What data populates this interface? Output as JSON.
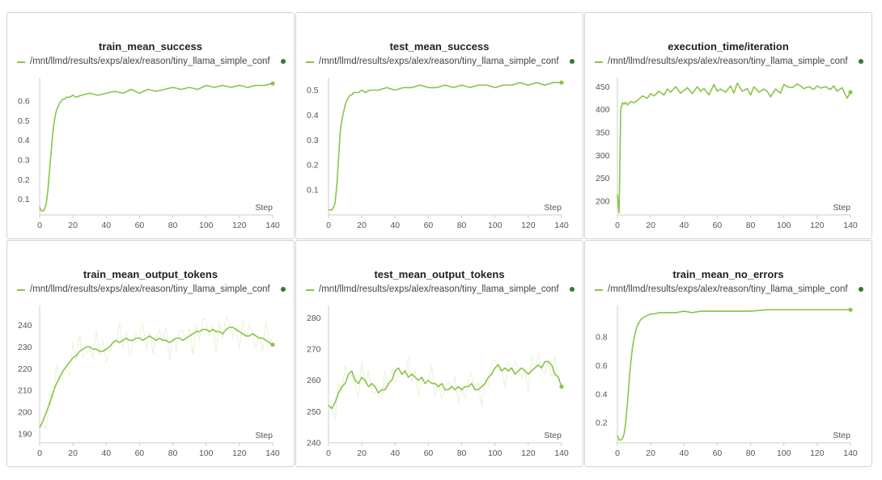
{
  "colors": {
    "series": "#8bc34a",
    "series_light": "#e8f3d6",
    "dot": "#2e7d32",
    "axis": "#cccccc"
  },
  "chart_data": [
    {
      "type": "line",
      "title": "train_mean_success",
      "legend": "/mnt/llmd/results/exps/alex/reason/tiny_llama_simple_conf",
      "xlabel": "Step",
      "xlim": [
        0,
        140
      ],
      "ylim": [
        0.02,
        0.72
      ],
      "xticks": [
        0,
        20,
        40,
        60,
        80,
        100,
        120,
        140
      ],
      "yticks": [
        0.1,
        0.2,
        0.3,
        0.4,
        0.5,
        0.6
      ],
      "ytick_labels": [
        "0.1",
        "0.2",
        "0.3",
        "0.4",
        "0.5",
        "0.6"
      ],
      "noisy": false,
      "x": [
        0,
        1,
        2,
        3,
        4,
        5,
        6,
        7,
        8,
        9,
        10,
        11,
        12,
        13,
        14,
        15,
        16,
        18,
        20,
        22,
        25,
        30,
        35,
        40,
        45,
        50,
        55,
        60,
        65,
        70,
        75,
        80,
        85,
        90,
        95,
        100,
        105,
        110,
        115,
        120,
        125,
        130,
        135,
        140
      ],
      "y": [
        0.06,
        0.04,
        0.04,
        0.05,
        0.08,
        0.15,
        0.25,
        0.35,
        0.45,
        0.51,
        0.55,
        0.57,
        0.59,
        0.6,
        0.61,
        0.61,
        0.62,
        0.62,
        0.63,
        0.62,
        0.63,
        0.64,
        0.63,
        0.64,
        0.65,
        0.64,
        0.66,
        0.64,
        0.66,
        0.65,
        0.66,
        0.67,
        0.66,
        0.67,
        0.66,
        0.68,
        0.67,
        0.68,
        0.67,
        0.68,
        0.67,
        0.68,
        0.68,
        0.69
      ]
    },
    {
      "type": "line",
      "title": "test_mean_success",
      "legend": "/mnt/llmd/results/exps/alex/reason/tiny_llama_simple_conf",
      "xlabel": "Step",
      "xlim": [
        0,
        140
      ],
      "ylim": [
        0.0,
        0.55
      ],
      "xticks": [
        0,
        20,
        40,
        60,
        80,
        100,
        120,
        140
      ],
      "yticks": [
        0.1,
        0.2,
        0.3,
        0.4,
        0.5
      ],
      "ytick_labels": [
        "0.1",
        "0.2",
        "0.3",
        "0.4",
        "0.5"
      ],
      "noisy": false,
      "x": [
        0,
        1,
        2,
        3,
        4,
        5,
        6,
        7,
        8,
        9,
        10,
        11,
        12,
        13,
        14,
        15,
        16,
        18,
        20,
        22,
        25,
        30,
        35,
        40,
        45,
        50,
        55,
        60,
        65,
        70,
        75,
        80,
        85,
        90,
        95,
        100,
        105,
        110,
        115,
        120,
        125,
        130,
        135,
        140
      ],
      "y": [
        0.02,
        0.02,
        0.02,
        0.03,
        0.05,
        0.12,
        0.22,
        0.33,
        0.38,
        0.41,
        0.44,
        0.46,
        0.47,
        0.48,
        0.48,
        0.49,
        0.49,
        0.49,
        0.5,
        0.49,
        0.5,
        0.5,
        0.51,
        0.5,
        0.51,
        0.51,
        0.52,
        0.51,
        0.51,
        0.52,
        0.51,
        0.52,
        0.51,
        0.52,
        0.52,
        0.51,
        0.52,
        0.52,
        0.53,
        0.52,
        0.53,
        0.52,
        0.53,
        0.53
      ]
    },
    {
      "type": "line",
      "title": "execution_time/iteration",
      "legend": "/mnt/llmd/results/exps/alex/reason/tiny_llama_simple_conf",
      "xlabel": "Step",
      "xlim": [
        0,
        140
      ],
      "ylim": [
        170,
        470
      ],
      "xticks": [
        0,
        20,
        40,
        60,
        80,
        100,
        120,
        140
      ],
      "yticks": [
        200,
        250,
        300,
        350,
        400,
        450
      ],
      "ytick_labels": [
        "200",
        "250",
        "300",
        "350",
        "400",
        "450"
      ],
      "noisy": false,
      "x": [
        0,
        1,
        2,
        3,
        4,
        5,
        6,
        8,
        10,
        12,
        15,
        18,
        20,
        22,
        25,
        28,
        30,
        32,
        35,
        38,
        40,
        42,
        45,
        48,
        50,
        52,
        55,
        58,
        60,
        62,
        65,
        68,
        70,
        72,
        75,
        78,
        80,
        82,
        85,
        88,
        90,
        92,
        95,
        98,
        100,
        102,
        105,
        108,
        110,
        112,
        115,
        118,
        120,
        122,
        125,
        128,
        130,
        132,
        135,
        138,
        140
      ],
      "y": [
        215,
        175,
        400,
        415,
        412,
        416,
        410,
        418,
        415,
        420,
        430,
        425,
        435,
        430,
        440,
        432,
        445,
        438,
        450,
        436,
        442,
        448,
        435,
        450,
        440,
        446,
        432,
        455,
        440,
        445,
        438,
        452,
        436,
        458,
        440,
        446,
        432,
        450,
        438,
        445,
        440,
        428,
        445,
        436,
        455,
        450,
        448,
        456,
        452,
        446,
        450,
        444,
        452,
        447,
        450,
        444,
        452,
        440,
        448,
        425,
        438
      ]
    },
    {
      "type": "line",
      "title": "train_mean_output_tokens",
      "legend": "/mnt/llmd/results/exps/alex/reason/tiny_llama_simple_conf",
      "xlabel": "Step",
      "xlim": [
        0,
        140
      ],
      "ylim": [
        186,
        249
      ],
      "xticks": [
        0,
        20,
        40,
        60,
        80,
        100,
        120,
        140
      ],
      "yticks": [
        190,
        200,
        210,
        220,
        230,
        240
      ],
      "ytick_labels": [
        "190",
        "200",
        "210",
        "220",
        "230",
        "240"
      ],
      "noisy": true,
      "x": [
        0,
        2,
        4,
        6,
        8,
        10,
        12,
        14,
        16,
        18,
        20,
        22,
        24,
        26,
        28,
        30,
        32,
        34,
        36,
        38,
        40,
        42,
        44,
        46,
        48,
        50,
        52,
        54,
        56,
        58,
        60,
        62,
        64,
        66,
        68,
        70,
        72,
        74,
        76,
        78,
        80,
        82,
        84,
        86,
        88,
        90,
        92,
        94,
        96,
        98,
        100,
        102,
        104,
        106,
        108,
        110,
        112,
        114,
        116,
        118,
        120,
        122,
        124,
        126,
        128,
        130,
        132,
        134,
        136,
        138,
        140
      ],
      "y": [
        193,
        196,
        200,
        204,
        209,
        213,
        216,
        219,
        221,
        223,
        225,
        226,
        228,
        229,
        230,
        230,
        229,
        229,
        228,
        228,
        229,
        230,
        232,
        233,
        232,
        233,
        234,
        233,
        233,
        234,
        234,
        233,
        234,
        235,
        234,
        233,
        234,
        233,
        233,
        232,
        233,
        234,
        234,
        233,
        234,
        235,
        236,
        237,
        237,
        238,
        238,
        237,
        238,
        237,
        237,
        236,
        238,
        239,
        239,
        238,
        237,
        236,
        235,
        235,
        236,
        235,
        234,
        234,
        233,
        232,
        231
      ]
    },
    {
      "type": "line",
      "title": "test_mean_output_tokens",
      "legend": "/mnt/llmd/results/exps/alex/reason/tiny_llama_simple_conf",
      "xlabel": "Step",
      "xlim": [
        0,
        140
      ],
      "ylim": [
        240,
        284
      ],
      "xticks": [
        0,
        20,
        40,
        60,
        80,
        100,
        120,
        140
      ],
      "yticks": [
        240,
        250,
        260,
        270,
        280
      ],
      "ytick_labels": [
        "240",
        "250",
        "260",
        "270",
        "280"
      ],
      "noisy": true,
      "x": [
        0,
        2,
        4,
        6,
        8,
        10,
        12,
        14,
        16,
        18,
        20,
        22,
        24,
        26,
        28,
        30,
        32,
        34,
        36,
        38,
        40,
        42,
        44,
        46,
        48,
        50,
        52,
        54,
        56,
        58,
        60,
        62,
        64,
        66,
        68,
        70,
        72,
        74,
        76,
        78,
        80,
        82,
        84,
        86,
        88,
        90,
        92,
        94,
        96,
        98,
        100,
        102,
        104,
        106,
        108,
        110,
        112,
        114,
        116,
        118,
        120,
        122,
        124,
        126,
        128,
        130,
        132,
        134,
        136,
        138,
        140
      ],
      "y": [
        252,
        251,
        253,
        256,
        258,
        259,
        262,
        263,
        260,
        259,
        261,
        260,
        258,
        259,
        258,
        256,
        257,
        257,
        259,
        260,
        263,
        264,
        262,
        263,
        261,
        262,
        261,
        260,
        261,
        259,
        260,
        259,
        259,
        258,
        259,
        257,
        257,
        258,
        257,
        258,
        257,
        258,
        258,
        259,
        257,
        257,
        258,
        259,
        261,
        262,
        264,
        265,
        263,
        264,
        263,
        264,
        262,
        263,
        264,
        263,
        262,
        263,
        264,
        265,
        264,
        266,
        266,
        265,
        262,
        261,
        258
      ]
    },
    {
      "type": "line",
      "title": "train_mean_no_errors",
      "legend": "/mnt/llmd/results/exps/alex/reason/tiny_llama_simple_conf",
      "xlabel": "Step",
      "xlim": [
        0,
        140
      ],
      "ylim": [
        0.06,
        1.02
      ],
      "xticks": [
        0,
        20,
        40,
        60,
        80,
        100,
        120,
        140
      ],
      "yticks": [
        0.2,
        0.4,
        0.6,
        0.8
      ],
      "ytick_labels": [
        "0.2",
        "0.4",
        "0.6",
        "0.8"
      ],
      "noisy": false,
      "x": [
        0,
        1,
        2,
        3,
        4,
        5,
        6,
        7,
        8,
        9,
        10,
        11,
        12,
        13,
        14,
        15,
        16,
        18,
        20,
        22,
        25,
        30,
        35,
        40,
        45,
        50,
        55,
        60,
        65,
        70,
        80,
        90,
        100,
        110,
        120,
        130,
        140
      ],
      "y": [
        0.11,
        0.08,
        0.08,
        0.09,
        0.12,
        0.2,
        0.33,
        0.48,
        0.62,
        0.72,
        0.79,
        0.84,
        0.88,
        0.9,
        0.92,
        0.93,
        0.94,
        0.95,
        0.96,
        0.96,
        0.97,
        0.97,
        0.97,
        0.98,
        0.97,
        0.98,
        0.98,
        0.98,
        0.98,
        0.98,
        0.98,
        0.99,
        0.99,
        0.99,
        0.99,
        0.99,
        0.99
      ]
    }
  ]
}
